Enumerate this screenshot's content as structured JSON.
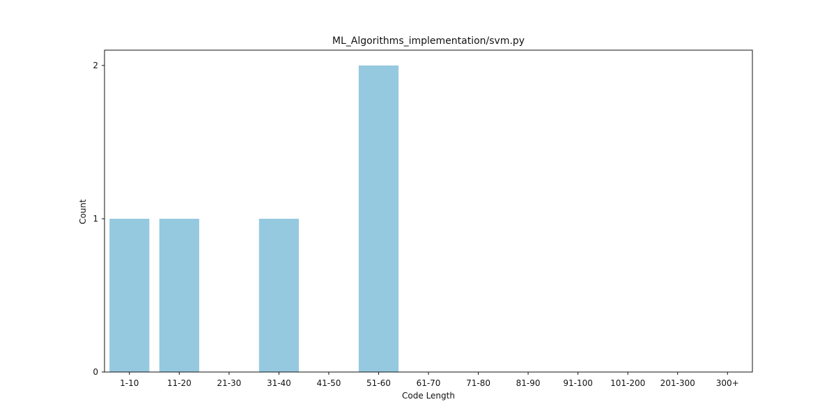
{
  "chart_data": {
    "type": "bar",
    "title": "ML_Algorithms_implementation/svm.py",
    "xlabel": "Code Length",
    "ylabel": "Count",
    "categories": [
      "1-10",
      "11-20",
      "21-30",
      "31-40",
      "41-50",
      "51-60",
      "61-70",
      "71-80",
      "81-90",
      "91-100",
      "101-200",
      "201-300",
      "300+"
    ],
    "values": [
      1,
      1,
      0,
      1,
      0,
      2,
      0,
      0,
      0,
      0,
      0,
      0,
      0
    ],
    "ylim": [
      0,
      2.1
    ],
    "yticks": [
      0,
      1,
      2
    ],
    "grid": false,
    "legend": "none",
    "bar_color": "#95c9df"
  }
}
